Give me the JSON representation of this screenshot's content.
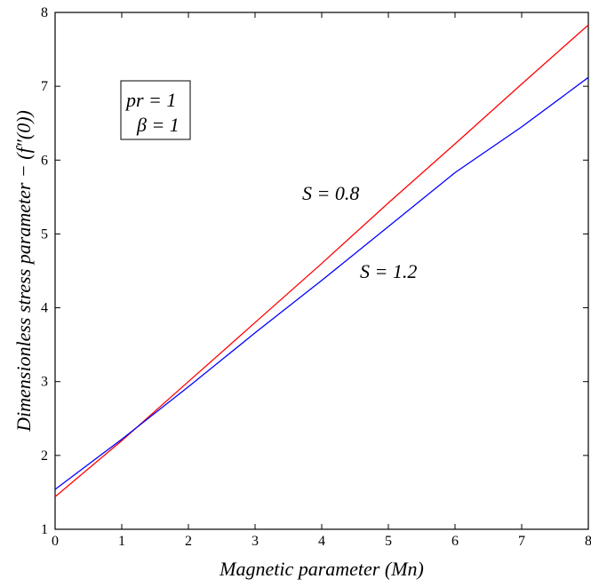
{
  "chart_data": {
    "type": "line",
    "title": "",
    "xlabel": "Magnetic parameter (Mn)",
    "ylabel": "Dimensionless stress parameter − (f″(0))",
    "xlim": [
      0,
      8
    ],
    "ylim": [
      1,
      8
    ],
    "x_ticks": [
      0,
      1,
      2,
      3,
      4,
      5,
      6,
      7,
      8
    ],
    "y_ticks": [
      1,
      2,
      3,
      4,
      5,
      6,
      7,
      8
    ],
    "grid": false,
    "legend": "none",
    "series": [
      {
        "name": "S = 0.8",
        "color": "#ff0000",
        "x": [
          0,
          1,
          2,
          3,
          4,
          5,
          6,
          7,
          8
        ],
        "y": [
          1.44,
          2.2,
          3.0,
          3.8,
          4.6,
          5.42,
          6.22,
          7.03,
          7.83
        ]
      },
      {
        "name": "S = 1.2",
        "color": "#0000ff",
        "x": [
          0,
          1,
          2,
          3,
          4,
          5,
          6,
          7,
          8
        ],
        "y": [
          1.54,
          2.22,
          2.93,
          3.66,
          4.37,
          5.1,
          5.83,
          6.45,
          7.12
        ]
      }
    ],
    "annotations": {
      "box_line1": "pr = 1",
      "box_line2": "β = 1",
      "label_red": "S = 0.8",
      "label_blue": "S = 1.2"
    }
  }
}
